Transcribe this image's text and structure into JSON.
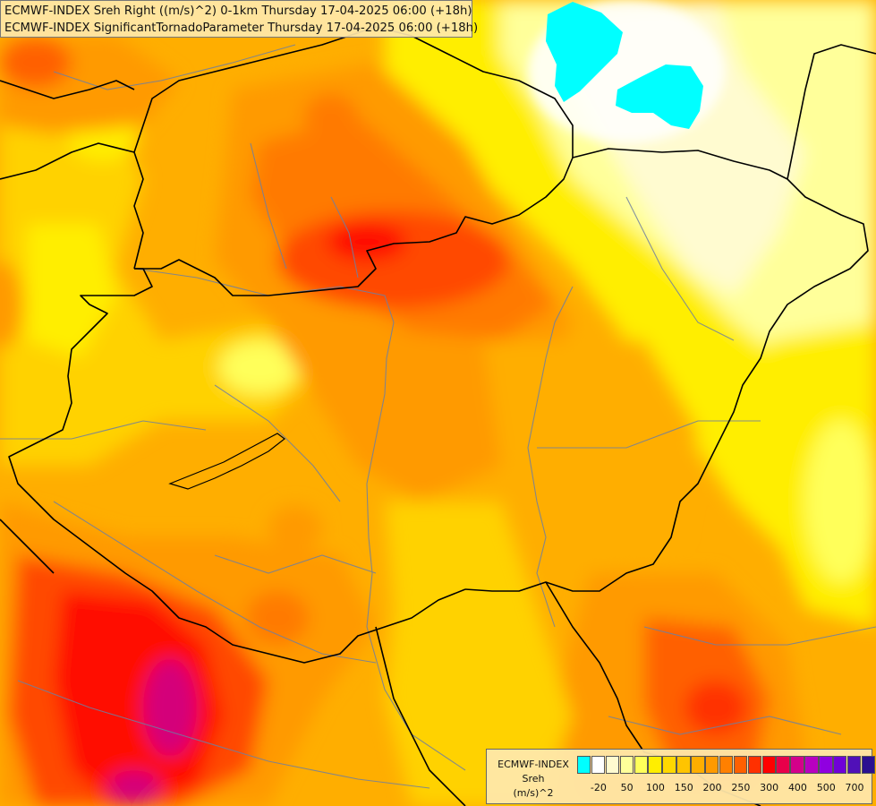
{
  "title_lines": [
    "ECMWF-INDEX Sreh Right ((m/s)^2) 0-1km Thursday 17-04-2025 06:00 (+18h)",
    "ECMWF-INDEX SignificantTornadoParameter Thursday 17-04-2025 06:00 (+18h)"
  ],
  "legend": {
    "source": "ECMWF-INDEX",
    "parameter": "Sreh",
    "unit": "(m/s)^2",
    "colors": [
      "#00ffff",
      "#ffffff",
      "#fffbd0",
      "#ffff9a",
      "#ffff5a",
      "#ffee00",
      "#ffd800",
      "#ffc400",
      "#ffae00",
      "#ff9a00",
      "#ff8000",
      "#ff6000",
      "#ff3000",
      "#ff0000",
      "#e8004a",
      "#d4008a",
      "#b800c0",
      "#9000e0",
      "#7000d8",
      "#5010b8",
      "#2a1090",
      "#000060"
    ],
    "ticks": [
      "-20",
      "50",
      "100",
      "150",
      "200",
      "250",
      "300",
      "400",
      "500",
      "700"
    ]
  },
  "field_colors": {
    "yellow_pale": "#fffbd0",
    "yellow_light": "#ffff9a",
    "yellow": "#ffee00",
    "yellow_orange": "#ffd200",
    "orange_light": "#ffb400",
    "orange": "#ff9a00",
    "orange_dark": "#ff7a00",
    "red_orange": "#ff4a00",
    "red": "#ff1000",
    "magenta": "#d4007a",
    "cyan": "#00ffff"
  }
}
